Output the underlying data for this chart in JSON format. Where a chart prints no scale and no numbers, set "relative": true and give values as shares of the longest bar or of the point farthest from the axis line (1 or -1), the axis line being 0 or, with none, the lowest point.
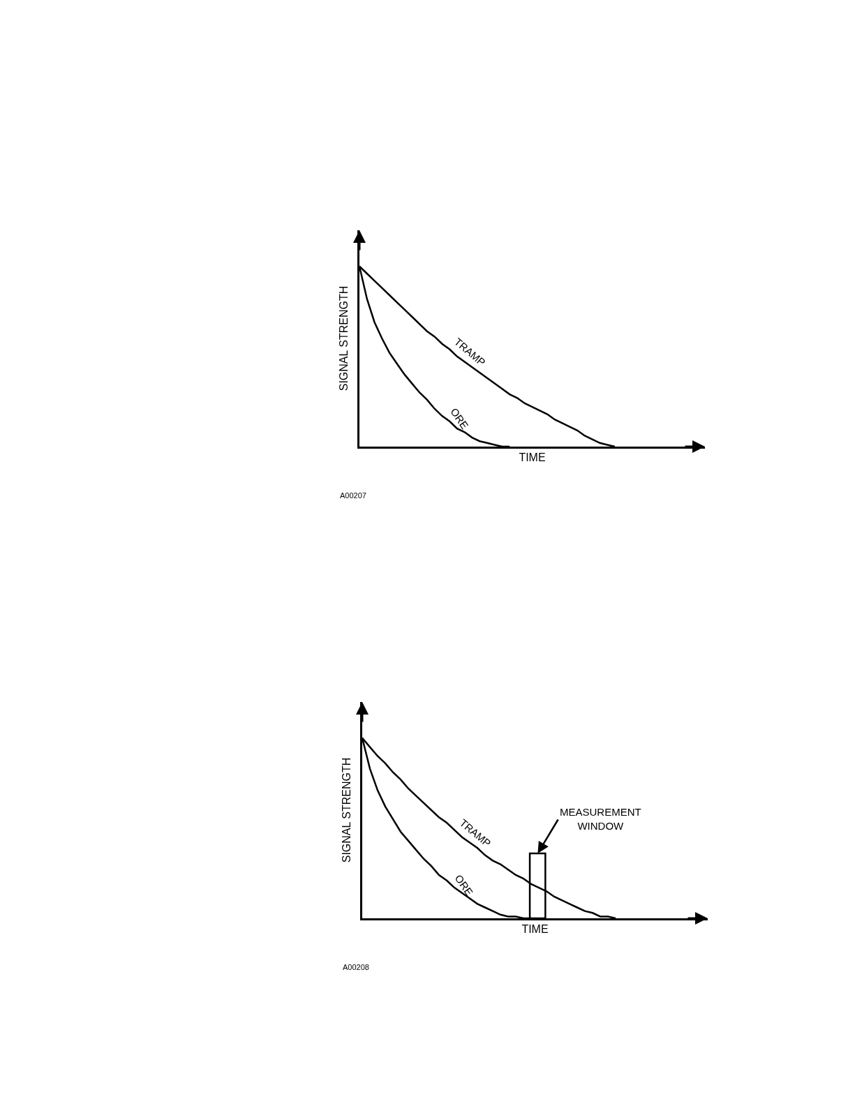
{
  "chart_data": [
    {
      "type": "line",
      "relative": true,
      "xlabel": "TIME",
      "ylabel": "SIGNAL STRENGTH",
      "annotations": [
        "A00207"
      ],
      "legend": false,
      "grid": false,
      "tick_labels": false,
      "categories": [
        null,
        null,
        null,
        null,
        null,
        null,
        null,
        null,
        null,
        null,
        null,
        null,
        null,
        null,
        null,
        null,
        null,
        null,
        null,
        null,
        null,
        null,
        null,
        null,
        null,
        null,
        null,
        null,
        null,
        null,
        null,
        null,
        null,
        null,
        null,
        null,
        null,
        null,
        null,
        null,
        null,
        null,
        null,
        null,
        null,
        null,
        null
      ],
      "series": [
        {
          "name": "TRAMP",
          "color": "#000000",
          "values": [
            1,
            0.96,
            0.92,
            0.88,
            0.84,
            0.8,
            0.76,
            0.72,
            0.68,
            0.64,
            0.61,
            0.57,
            0.54,
            0.5,
            0.47,
            0.44,
            0.41,
            0.38,
            0.35,
            0.32,
            0.29,
            0.27,
            0.24,
            0.22,
            0.2,
            0.18,
            0.15,
            0.13,
            0.11,
            0.09,
            0.06,
            0.04,
            0.02,
            0.01,
            0,
            null,
            null,
            null,
            null,
            null,
            null,
            null,
            null,
            null,
            null,
            null,
            null
          ]
        },
        {
          "name": "ORE",
          "color": "#000000",
          "values": [
            1,
            0.82,
            0.69,
            0.6,
            0.52,
            0.46,
            0.4,
            0.35,
            0.3,
            0.26,
            0.21,
            0.17,
            0.14,
            0.1,
            0.08,
            0.05,
            0.03,
            0.02,
            0.01,
            0.0,
            0,
            null,
            null,
            null,
            null,
            null,
            null,
            null,
            null,
            null,
            null,
            null,
            null,
            null,
            null,
            null,
            null,
            null,
            null,
            null,
            null,
            null,
            null,
            null,
            null,
            null,
            null
          ]
        }
      ]
    },
    {
      "type": "line",
      "relative": true,
      "xlabel": "TIME",
      "ylabel": "SIGNAL STRENGTH",
      "annotations": [
        "MEASUREMENT\nWINDOW",
        "A00208"
      ],
      "legend": false,
      "grid": false,
      "tick_labels": false,
      "categories": [
        null,
        null,
        null,
        null,
        null,
        null,
        null,
        null,
        null,
        null,
        null,
        null,
        null,
        null,
        null,
        null,
        null,
        null,
        null,
        null,
        null,
        null,
        null,
        null,
        null,
        null,
        null,
        null,
        null,
        null,
        null,
        null,
        null,
        null,
        null,
        null,
        null,
        null,
        null,
        null,
        null,
        null,
        null,
        null,
        null,
        null
      ],
      "series": [
        {
          "name": "TRAMP",
          "color": "#000000",
          "values": [
            1,
            0.95,
            0.9,
            0.86,
            0.81,
            0.77,
            0.72,
            0.68,
            0.64,
            0.6,
            0.56,
            0.53,
            0.49,
            0.45,
            0.42,
            0.39,
            0.35,
            0.32,
            0.3,
            0.27,
            0.24,
            0.22,
            0.19,
            0.17,
            0.15,
            0.12,
            0.1,
            0.08,
            0.06,
            0.04,
            0.03,
            0.01,
            0.01,
            0,
            null,
            null,
            null,
            null,
            null,
            null,
            null,
            null,
            null,
            null,
            null,
            null
          ]
        },
        {
          "name": "ORE",
          "color": "#000000",
          "values": [
            1,
            0.83,
            0.71,
            0.62,
            0.55,
            0.48,
            0.43,
            0.38,
            0.33,
            0.29,
            0.24,
            0.21,
            0.17,
            0.14,
            0.11,
            0.08,
            0.06,
            0.04,
            0.02,
            0.01,
            0.01,
            0.0,
            0,
            null,
            null,
            null,
            null,
            null,
            null,
            null,
            null,
            null,
            null,
            null,
            null,
            null,
            null,
            null,
            null,
            null,
            null,
            null,
            null,
            null,
            null,
            null
          ]
        }
      ]
    }
  ]
}
